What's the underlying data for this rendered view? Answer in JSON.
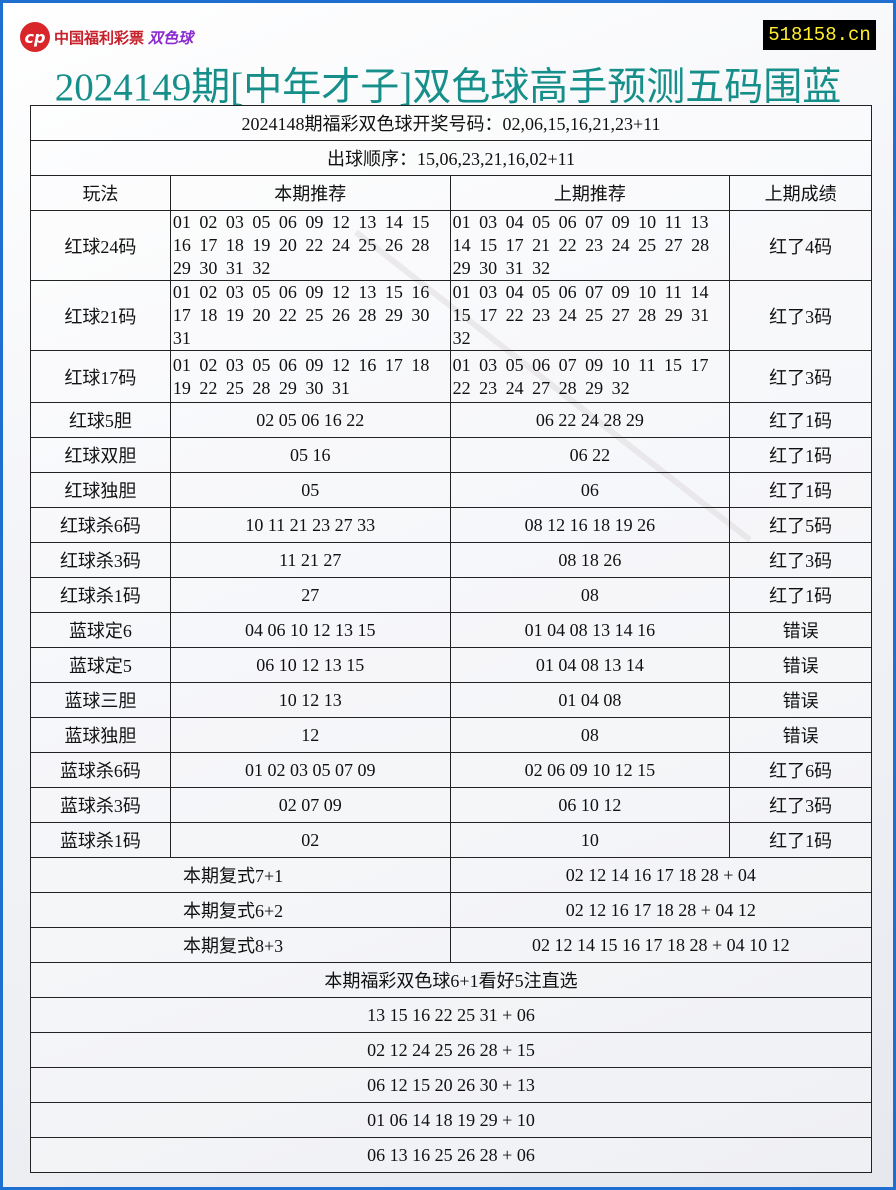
{
  "logo": {
    "org": "中国福利彩票",
    "product": "双色球"
  },
  "site": "518158.cn",
  "title": "2024149期[中年才子]双色球高手预测五码围蓝",
  "draw_result": "2024148期福彩双色球开奖号码：02,06,15,16,21,23+11",
  "draw_order": "出球顺序：15,06,23,21,16,02+11",
  "headers": [
    "玩法",
    "本期推荐",
    "上期推荐",
    "上期成绩"
  ],
  "rows": [
    [
      "红球24码",
      "01 02 03 05 06 09 12 13 14 15 16 17 18 19 20 22 24 25 26 28 29 30 31 32",
      "01 03 04 05 06 07 09 10 11 13 14 15 17 21 22 23 24 25 27 28 29 30 31 32",
      "红了4码"
    ],
    [
      "红球21码",
      "01 02 03 05 06 09 12 13 15 16 17 18 19 20 22 25 26 28 29 30 31",
      "01 03 04 05 06 07 09 10 11 14 15 17 22 23 24 25 27 28 29 31 32",
      "红了3码"
    ],
    [
      "红球17码",
      "01 02 03 05 06 09 12 16 17 18 19 22 25 28 29 30 31",
      "01 03 05 06 07 09 10 11 15 17 22 23 24 27 28 29 32",
      "红了3码"
    ],
    [
      "红球5胆",
      "02 05 06 16 22",
      "06 22 24 28 29",
      "红了1码"
    ],
    [
      "红球双胆",
      "05 16",
      "06 22",
      "红了1码"
    ],
    [
      "红球独胆",
      "05",
      "06",
      "红了1码"
    ],
    [
      "红球杀6码",
      "10 11 21 23 27 33",
      "08 12 16 18 19 26",
      "红了5码"
    ],
    [
      "红球杀3码",
      "11 21 27",
      "08 18 26",
      "红了3码"
    ],
    [
      "红球杀1码",
      "27",
      "08",
      "红了1码"
    ],
    [
      "蓝球定6",
      "04 06 10 12 13 15",
      "01 04 08 13 14 16",
      "错误"
    ],
    [
      "蓝球定5",
      "06 10 12 13 15",
      "01 04 08 13 14",
      "错误"
    ],
    [
      "蓝球三胆",
      "10 12 13",
      "01 04 08",
      "错误"
    ],
    [
      "蓝球独胆",
      "12",
      "08",
      "错误"
    ],
    [
      "蓝球杀6码",
      "01 02 03 05 07 09",
      "02 06 09 10 12 15",
      "红了6码"
    ],
    [
      "蓝球杀3码",
      "02 07 09",
      "06 10 12",
      "红了3码"
    ],
    [
      "蓝球杀1码",
      "02",
      "10",
      "红了1码"
    ]
  ],
  "fushi": [
    {
      "label": "本期复式7+1",
      "value": "02 12 14 16 17 18 28 + 04"
    },
    {
      "label": "本期复式6+2",
      "value": "02 12 16 17 18 28 + 04 12"
    },
    {
      "label": "本期复式8+3",
      "value": "02 12 14 15 16 17 18 28 + 04 10 12"
    }
  ],
  "picks_title": "本期福彩双色球6+1看好5注直选",
  "picks": [
    "13 15 16 22 25 31 + 06",
    "02 12 24 25 26 28 + 15",
    "06 12 15 20 26 30 + 13",
    "01 06 14 18 19 29 + 10",
    "06 13 16 25 26 28 + 06"
  ]
}
